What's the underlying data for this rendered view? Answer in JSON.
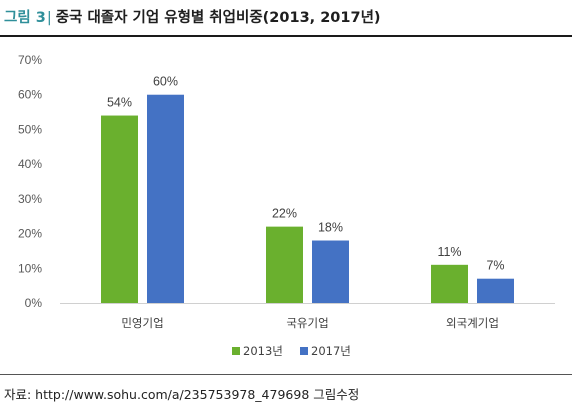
{
  "figure": {
    "label": "그림 3",
    "separator": "|",
    "title": "중국 대졸자 기업 유형별 취업비중(2013, 2017년)"
  },
  "source": "자료: http://www.sohu.com/a/235753978_479698 그림수정",
  "chart_data": {
    "type": "bar",
    "title": "",
    "xlabel": "",
    "ylabel": "",
    "categories": [
      "민영기업",
      "국유기업",
      "외국계기업"
    ],
    "series": [
      {
        "name": "2013년",
        "values": [
          54,
          22,
          11
        ],
        "labels": [
          "54%",
          "22%",
          "11%"
        ],
        "color": "#6ab02e"
      },
      {
        "name": "2017년",
        "values": [
          60,
          18,
          7
        ],
        "labels": [
          "60%",
          "18%",
          "7%"
        ],
        "color": "#4472c4"
      }
    ],
    "ylim": [
      0,
      70
    ],
    "yticks": [
      0,
      10,
      20,
      30,
      40,
      50,
      60,
      70
    ],
    "ytick_labels": [
      "0%",
      "10%",
      "20%",
      "30%",
      "40%",
      "50%",
      "60%",
      "70%"
    ],
    "grid": false,
    "legend": "bottom-center"
  }
}
